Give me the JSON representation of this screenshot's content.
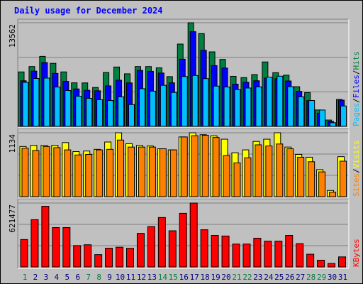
{
  "title": "Daily usage for December 2024",
  "colors": {
    "hits": "#008040",
    "files": "#0000ff",
    "pages": "#00c0ff",
    "visits": "#ffff00",
    "sites": "#ff8000",
    "kbytes": "#ff0000",
    "panel_bg": "#c0c0c0",
    "weekend_label": "#008040",
    "weekday_label": "#000080"
  },
  "chart_data": [
    {
      "type": "bar",
      "name": "hits-files-pages",
      "ymax_label": "13562",
      "ylim": [
        0,
        13562
      ],
      "right_labels": [
        "Pages",
        "Files",
        "Hits"
      ],
      "categories": [
        "1",
        "2",
        "3",
        "4",
        "5",
        "6",
        "7",
        "8",
        "9",
        "10",
        "11",
        "12",
        "13",
        "14",
        "15",
        "16",
        "17",
        "18",
        "19",
        "20",
        "21",
        "22",
        "23",
        "24",
        "25",
        "26",
        "27",
        "28",
        "29",
        "30",
        "31"
      ],
      "series": [
        {
          "name": "Hits",
          "values": [
            7127,
            7830,
            9160,
            8250,
            7127,
            5700,
            5690,
            5090,
            7050,
            7770,
            6880,
            7830,
            7830,
            7660,
            6510,
            10770,
            13562,
            12140,
            9750,
            8760,
            6550,
            6380,
            6780,
            8430,
            7030,
            6700,
            5190,
            4420,
            2150,
            830,
            3520
          ]
        },
        {
          "name": "Files",
          "values": [
            5970,
            7230,
            8350,
            6930,
            5890,
            4900,
            4730,
            4660,
            5300,
            6040,
            5690,
            7330,
            7210,
            6980,
            5700,
            8790,
            12390,
            9960,
            7950,
            7630,
            5530,
            5780,
            5970,
            6310,
            6240,
            5940,
            4580,
            3370,
            1730,
            640,
            3430
          ]
        },
        {
          "name": "Pages",
          "values": [
            5760,
            6270,
            6320,
            5150,
            4690,
            3950,
            3670,
            3490,
            3390,
            3870,
            2860,
            4930,
            4610,
            5370,
            4440,
            6520,
            6660,
            6250,
            5270,
            5150,
            4820,
            5020,
            5170,
            6440,
            6570,
            5200,
            3870,
            3390,
            2140,
            480,
            2670
          ]
        }
      ]
    },
    {
      "type": "bar",
      "name": "visits-sites",
      "ymax_label": "1134",
      "ylim": [
        0,
        1134
      ],
      "right_labels": [
        "Sites",
        "Visits"
      ],
      "categories": [
        "1",
        "2",
        "3",
        "4",
        "5",
        "6",
        "7",
        "8",
        "9",
        "10",
        "11",
        "12",
        "13",
        "14",
        "15",
        "16",
        "17",
        "18",
        "19",
        "20",
        "21",
        "22",
        "23",
        "24",
        "25",
        "26",
        "27",
        "28",
        "29",
        "30",
        "31"
      ],
      "series": [
        {
          "name": "Visits",
          "values": [
            890,
            910,
            910,
            910,
            960,
            800,
            810,
            840,
            970,
            1134,
            940,
            910,
            900,
            850,
            830,
            1060,
            1134,
            1100,
            1080,
            1020,
            780,
            830,
            980,
            1020,
            1134,
            880,
            750,
            700,
            480,
            110,
            710
          ]
        },
        {
          "name": "Sites",
          "values": [
            860,
            820,
            890,
            870,
            830,
            740,
            750,
            830,
            840,
            1005,
            880,
            880,
            880,
            850,
            830,
            1060,
            1082,
            1090,
            1050,
            730,
            600,
            690,
            920,
            900,
            935,
            850,
            700,
            620,
            440,
            80,
            630
          ]
        }
      ]
    },
    {
      "type": "bar",
      "name": "kbytes",
      "ymax_label": "621477",
      "ylim": [
        0,
        621477
      ],
      "right_labels": [
        "KBytes"
      ],
      "categories": [
        "1",
        "2",
        "3",
        "4",
        "5",
        "6",
        "7",
        "8",
        "9",
        "10",
        "11",
        "12",
        "13",
        "14",
        "15",
        "16",
        "17",
        "18",
        "19",
        "20",
        "21",
        "22",
        "23",
        "24",
        "25",
        "26",
        "27",
        "28",
        "29",
        "30",
        "31"
      ],
      "series": [
        {
          "name": "KBytes",
          "values": [
            267000,
            460000,
            590000,
            383000,
            383000,
            208000,
            216000,
            120000,
            183000,
            192000,
            182000,
            327000,
            393000,
            481000,
            352000,
            522000,
            621477,
            362000,
            307000,
            301000,
            223000,
            223000,
            280000,
            251000,
            251000,
            307000,
            227000,
            124000,
            66000,
            34000,
            98000
          ]
        }
      ]
    }
  ]
}
